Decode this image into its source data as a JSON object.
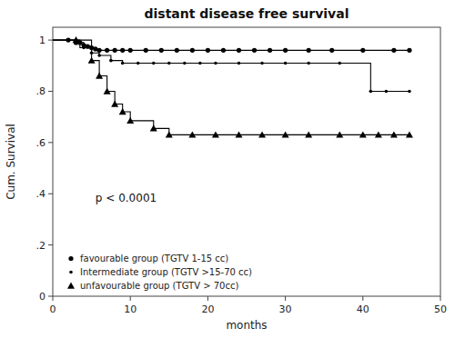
{
  "chart_data": {
    "type": "step",
    "title": "distant disease free survival",
    "x_label": "months",
    "y_label": "Cum. Survival",
    "xlim": [
      0,
      50
    ],
    "ylim": [
      0,
      1.05
    ],
    "xticks": [
      0,
      10,
      20,
      30,
      40,
      50
    ],
    "yticks": [
      0,
      {
        "value": 0.2,
        "label": ".2"
      },
      {
        "value": 0.4,
        "label": ".4"
      },
      {
        "value": 0.6,
        "label": ".6"
      },
      {
        "value": 0.8,
        "label": ".8"
      },
      1
    ],
    "grid": false,
    "legend": "lower left",
    "annotations": [
      {
        "text": "p < 0.0001",
        "x": 5.5,
        "y": 0.37
      }
    ],
    "series": [
      {
        "name": "favourable group (TGTV 1-15 cc)",
        "color": "black",
        "marker": "circle",
        "step_x": [
          0,
          2,
          3,
          3.5,
          4,
          4.5,
          5,
          5.5,
          6,
          46
        ],
        "step_values": [
          1.0,
          1.0,
          0.99,
          0.99,
          0.98,
          0.975,
          0.97,
          0.965,
          0.96,
          0.96
        ],
        "x": [
          2,
          3,
          3.5,
          4,
          4.5,
          5,
          5.5,
          6,
          7,
          8,
          9,
          10,
          12,
          14,
          16,
          18,
          20,
          22,
          24,
          26,
          28,
          30,
          33,
          36,
          40,
          44,
          46
        ],
        "values": [
          1.0,
          0.99,
          0.99,
          0.98,
          0.975,
          0.97,
          0.965,
          0.96,
          0.96,
          0.96,
          0.96,
          0.96,
          0.96,
          0.96,
          0.96,
          0.96,
          0.96,
          0.96,
          0.96,
          0.96,
          0.96,
          0.96,
          0.96,
          0.96,
          0.96,
          0.96,
          0.96
        ]
      },
      {
        "name": "Intermediate group (TGTV >15-70 cc)",
        "color": "black",
        "marker": "point",
        "step_x": [
          0,
          2,
          3.5,
          5,
          6,
          7.5,
          9,
          41,
          46
        ],
        "step_values": [
          1.0,
          1.0,
          0.97,
          0.95,
          0.94,
          0.92,
          0.91,
          0.8,
          0.8
        ],
        "x": [
          2,
          4,
          5,
          6,
          7.5,
          9,
          11,
          13,
          15,
          17,
          19,
          21,
          24,
          27,
          30,
          33,
          37,
          41,
          43,
          46
        ],
        "values": [
          1.0,
          0.97,
          0.95,
          0.94,
          0.92,
          0.91,
          0.91,
          0.91,
          0.91,
          0.91,
          0.91,
          0.91,
          0.91,
          0.91,
          0.91,
          0.91,
          0.91,
          0.8,
          0.8,
          0.8
        ]
      },
      {
        "name": "unfavourable group (TGTV > 70cc)",
        "color": "black",
        "marker": "triangle",
        "step_x": [
          0,
          3,
          5,
          6,
          7,
          8,
          9,
          10,
          11,
          13,
          15,
          17,
          46
        ],
        "step_values": [
          1.0,
          1.0,
          0.92,
          0.86,
          0.8,
          0.75,
          0.72,
          0.685,
          0.685,
          0.655,
          0.63,
          0.63,
          0.63
        ],
        "x": [
          3,
          5,
          6,
          7,
          8,
          9,
          10,
          13,
          15,
          18,
          21,
          24,
          27,
          30,
          33,
          37,
          40,
          42,
          44,
          46
        ],
        "values": [
          1.0,
          0.92,
          0.86,
          0.8,
          0.75,
          0.72,
          0.685,
          0.655,
          0.63,
          0.63,
          0.63,
          0.63,
          0.63,
          0.63,
          0.63,
          0.63,
          0.63,
          0.63,
          0.63,
          0.63
        ]
      }
    ]
  }
}
